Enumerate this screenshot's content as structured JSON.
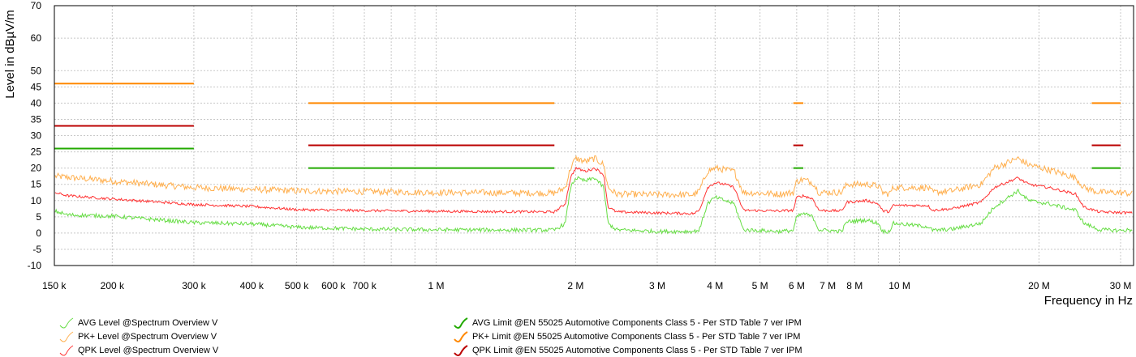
{
  "chart_data": {
    "type": "line",
    "xscale": "log",
    "xlabel": "Frequency in Hz",
    "ylabel": "Level in dBµV/m",
    "xlim": [
      150000,
      32000000
    ],
    "ylim": [
      -10,
      70
    ],
    "grid": true,
    "xticks": [
      {
        "v": 150000,
        "label": "150 k"
      },
      {
        "v": 200000,
        "label": "200 k"
      },
      {
        "v": 300000,
        "label": "300 k"
      },
      {
        "v": 400000,
        "label": "400 k"
      },
      {
        "v": 500000,
        "label": "500 k"
      },
      {
        "v": 600000,
        "label": "600 k"
      },
      {
        "v": 700000,
        "label": "700 k"
      },
      {
        "v": 1000000,
        "label": "1 M"
      },
      {
        "v": 2000000,
        "label": "2 M"
      },
      {
        "v": 3000000,
        "label": "3 M"
      },
      {
        "v": 4000000,
        "label": "4 M"
      },
      {
        "v": 5000000,
        "label": "5 M"
      },
      {
        "v": 6000000,
        "label": "6 M"
      },
      {
        "v": 7000000,
        "label": "7 M"
      },
      {
        "v": 8000000,
        "label": "8 M"
      },
      {
        "v": 10000000,
        "label": "10 M"
      },
      {
        "v": 20000000,
        "label": "20 M"
      },
      {
        "v": 30000000,
        "label": "30 M"
      }
    ],
    "yticks": [
      -10,
      -5,
      0,
      5,
      10,
      15,
      20,
      25,
      30,
      35,
      40,
      45,
      50,
      60,
      70
    ],
    "colors": {
      "avg_level": "#66dd44",
      "pk_level": "#ffb050",
      "qpk_level": "#ff3333",
      "avg_limit": "#22aa00",
      "pk_limit": "#ff8800",
      "qpk_limit": "#bb0000",
      "grid": "#c8c8c8"
    },
    "limits": [
      {
        "name": "AVG Limit @EN 55025 Automotive Components Class 5 - Per STD Table 7 ver IPM",
        "color": "#22aa00",
        "segments": [
          [
            150000,
            300000,
            26
          ],
          [
            530000,
            1800000,
            20
          ],
          [
            5900000,
            6200000,
            20
          ],
          [
            26000000,
            30000000,
            20
          ]
        ]
      },
      {
        "name": "PK+ Limit @EN 55025 Automotive Components Class 5 - Per STD Table 7 ver IPM",
        "color": "#ff8800",
        "segments": [
          [
            150000,
            300000,
            46
          ],
          [
            530000,
            1800000,
            40
          ],
          [
            5900000,
            6200000,
            40
          ],
          [
            26000000,
            30000000,
            40
          ]
        ]
      },
      {
        "name": "QPK Limit @EN 55025 Automotive Components Class 5 - Per STD Table 7 ver IPM",
        "color": "#bb0000",
        "segments": [
          [
            150000,
            300000,
            33
          ],
          [
            530000,
            1800000,
            27
          ],
          [
            5900000,
            6200000,
            27
          ],
          [
            26000000,
            30000000,
            27
          ]
        ]
      }
    ],
    "series": [
      {
        "name": "AVG Level @Spectrum Overview V",
        "color": "#66dd44",
        "noise": 0.6,
        "points": [
          [
            150000,
            6.8
          ],
          [
            160000,
            5.6
          ],
          [
            200000,
            5.2
          ],
          [
            300000,
            3.2
          ],
          [
            400000,
            2.8
          ],
          [
            500000,
            1.8
          ],
          [
            700000,
            1.2
          ],
          [
            1000000,
            1.0
          ],
          [
            1800000,
            0.9
          ],
          [
            1900000,
            3
          ],
          [
            1950000,
            14
          ],
          [
            2000000,
            17
          ],
          [
            2100000,
            16
          ],
          [
            2200000,
            17
          ],
          [
            2300000,
            14
          ],
          [
            2350000,
            3
          ],
          [
            2450000,
            1
          ],
          [
            3000000,
            0.5
          ],
          [
            3600000,
            0.5
          ],
          [
            3700000,
            1
          ],
          [
            3850000,
            9
          ],
          [
            4000000,
            11
          ],
          [
            4200000,
            10
          ],
          [
            4400000,
            9
          ],
          [
            4600000,
            1
          ],
          [
            5500000,
            0.5
          ],
          [
            5900000,
            0.8
          ],
          [
            6000000,
            5
          ],
          [
            6200000,
            6
          ],
          [
            6500000,
            5
          ],
          [
            6700000,
            1
          ],
          [
            7500000,
            0.5
          ],
          [
            7700000,
            3.5
          ],
          [
            8500000,
            4
          ],
          [
            9000000,
            3
          ],
          [
            9200000,
            0.5
          ],
          [
            9500000,
            0.5
          ],
          [
            9700000,
            3
          ],
          [
            11500000,
            2
          ],
          [
            11800000,
            0.8
          ],
          [
            13000000,
            1.2
          ],
          [
            15000000,
            3
          ],
          [
            16000000,
            8
          ],
          [
            18000000,
            13
          ],
          [
            19000000,
            10
          ],
          [
            21000000,
            9
          ],
          [
            24000000,
            7
          ],
          [
            25000000,
            3
          ],
          [
            27000000,
            1
          ],
          [
            30000000,
            0.8
          ],
          [
            32000000,
            1
          ]
        ]
      },
      {
        "name": "PK+ Level @Spectrum Overview V",
        "color": "#ffb050",
        "noise": 1.0,
        "points": [
          [
            150000,
            17.5
          ],
          [
            200000,
            16
          ],
          [
            300000,
            14
          ],
          [
            500000,
            13
          ],
          [
            1000000,
            12.5
          ],
          [
            1800000,
            12.3
          ],
          [
            1900000,
            14
          ],
          [
            1950000,
            20
          ],
          [
            2000000,
            23
          ],
          [
            2100000,
            22
          ],
          [
            2200000,
            23
          ],
          [
            2300000,
            21
          ],
          [
            2350000,
            14
          ],
          [
            2450000,
            12
          ],
          [
            3000000,
            11.8
          ],
          [
            3600000,
            11.8
          ],
          [
            3700000,
            13
          ],
          [
            3850000,
            19
          ],
          [
            4000000,
            20
          ],
          [
            4200000,
            19.5
          ],
          [
            4400000,
            19
          ],
          [
            4600000,
            12.5
          ],
          [
            5500000,
            12
          ],
          [
            5900000,
            12.5
          ],
          [
            6000000,
            16
          ],
          [
            6200000,
            16.5
          ],
          [
            6500000,
            15.5
          ],
          [
            6700000,
            12.5
          ],
          [
            7500000,
            12.5
          ],
          [
            7700000,
            15
          ],
          [
            8500000,
            15
          ],
          [
            9000000,
            14.5
          ],
          [
            9200000,
            12.5
          ],
          [
            9500000,
            12
          ],
          [
            9700000,
            14
          ],
          [
            11500000,
            14
          ],
          [
            11800000,
            12.5
          ],
          [
            13000000,
            13
          ],
          [
            15000000,
            15
          ],
          [
            16000000,
            20
          ],
          [
            18000000,
            23
          ],
          [
            19000000,
            21
          ],
          [
            21000000,
            19.5
          ],
          [
            24000000,
            17
          ],
          [
            25000000,
            14
          ],
          [
            27000000,
            12.5
          ],
          [
            30000000,
            12.5
          ],
          [
            32000000,
            12
          ]
        ]
      },
      {
        "name": "QPK Level @Spectrum Overview V",
        "color": "#ff3333",
        "noise": 0.4,
        "points": [
          [
            150000,
            12.5
          ],
          [
            160000,
            11.5
          ],
          [
            200000,
            10.5
          ],
          [
            300000,
            8.8
          ],
          [
            400000,
            8.2
          ],
          [
            500000,
            7.2
          ],
          [
            700000,
            6.9
          ],
          [
            1000000,
            6.7
          ],
          [
            1800000,
            6.5
          ],
          [
            1900000,
            9
          ],
          [
            1950000,
            17
          ],
          [
            2000000,
            20
          ],
          [
            2100000,
            19
          ],
          [
            2200000,
            20
          ],
          [
            2300000,
            18
          ],
          [
            2350000,
            8
          ],
          [
            2450000,
            6.5
          ],
          [
            3000000,
            6.2
          ],
          [
            3600000,
            6.0
          ],
          [
            3700000,
            7
          ],
          [
            3850000,
            14
          ],
          [
            4000000,
            15.5
          ],
          [
            4200000,
            15
          ],
          [
            4400000,
            14
          ],
          [
            4600000,
            7
          ],
          [
            5500000,
            6.8
          ],
          [
            5900000,
            7
          ],
          [
            6000000,
            11
          ],
          [
            6200000,
            11.5
          ],
          [
            6500000,
            10.5
          ],
          [
            6700000,
            7
          ],
          [
            7500000,
            6.8
          ],
          [
            7700000,
            9.5
          ],
          [
            8500000,
            10
          ],
          [
            9000000,
            9
          ],
          [
            9200000,
            6.8
          ],
          [
            9500000,
            6.6
          ],
          [
            9700000,
            8.5
          ],
          [
            11500000,
            8.5
          ],
          [
            11800000,
            7
          ],
          [
            13000000,
            7.5
          ],
          [
            15000000,
            9.5
          ],
          [
            16000000,
            14
          ],
          [
            18000000,
            17
          ],
          [
            19000000,
            15
          ],
          [
            21000000,
            14
          ],
          [
            24000000,
            12
          ],
          [
            25000000,
            8
          ],
          [
            27000000,
            6.5
          ],
          [
            30000000,
            6.3
          ],
          [
            32000000,
            6.2
          ]
        ]
      }
    ],
    "legend": {
      "left": [
        "AVG Level @Spectrum Overview V",
        "PK+ Level @Spectrum Overview V",
        "QPK Level @Spectrum Overview V"
      ],
      "right": [
        "AVG Limit @EN 55025 Automotive Components Class 5 - Per STD Table 7 ver IPM",
        "PK+ Limit @EN 55025 Automotive Components Class 5 - Per STD Table 7 ver IPM",
        "QPK Limit @EN 55025 Automotive Components Class 5 - Per STD Table 7 ver IPM"
      ]
    }
  }
}
